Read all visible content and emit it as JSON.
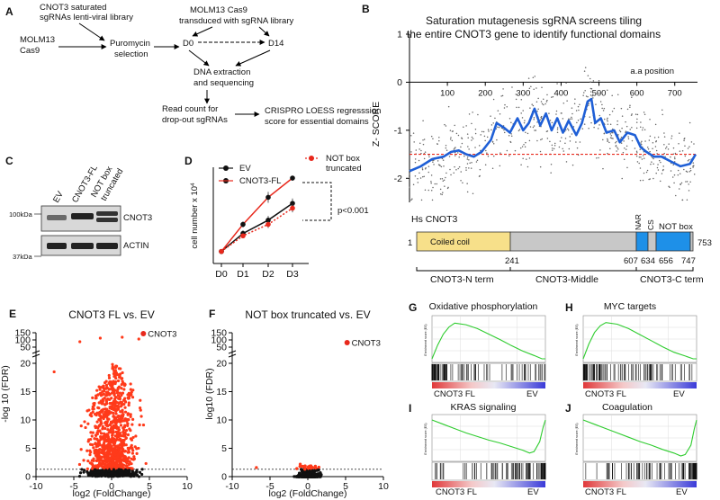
{
  "panel_labels": {
    "a": "A",
    "b": "B",
    "c": "C",
    "d": "D",
    "e": "E",
    "f": "F",
    "g": "G",
    "h": "H",
    "i": "I",
    "j": "J"
  },
  "panel_a": {
    "library_line1": "CNOT3 saturated",
    "library_line2": "sgRNAs lenti-viral library",
    "cell_line1": "MOLM13",
    "cell_line2": "Cas9",
    "transduced_line1": "MOLM13 Cas9",
    "transduced_line2": "transduced with  sgRNA library",
    "puro_line1": "Puromycin",
    "puro_line2": "selection",
    "d0": "D0",
    "d14": "D14",
    "dna_line1": "DNA extraction",
    "dna_line2": "and sequencing",
    "read_line1": "Read count for",
    "read_line2": "drop-out sgRNAs",
    "score_line1": "CRISPRO LOESS regresssion",
    "score_line2": "score for essential domains"
  },
  "panel_b": {
    "title_line1": "Saturation mutagenesis sgRNA screens tiling",
    "title_line2": "the entire CNOT3 gene to identify functional domains",
    "ylabel": "Z- SCORE",
    "xaxis_caption": "a.a position",
    "protein_name": "Hs CNOT3",
    "coiled_coil": "Coiled coil",
    "nar": "NAR",
    "cs": "CS",
    "not_box": "NOT box",
    "aa_start": "1",
    "aa_end": "753",
    "aa_241": "241",
    "aa_607": "607",
    "aa_634": "634",
    "aa_656": "656",
    "aa_747": "747",
    "region_n": "CNOT3-N term",
    "region_mid": "CNOT3-Middle",
    "region_c": "CNOT3-C term",
    "colors": {
      "loess": "#1f5fd6",
      "threshold": "#e8281c",
      "coiled": "#f7e08a",
      "middle": "#c8c8c8",
      "cterm": "#1e90e8"
    }
  },
  "panel_c": {
    "lane1": "EV",
    "lane2": "CNOT3-FL",
    "lane3_line1": "NOT box",
    "lane3_line2": "truncated",
    "band1": "CNOT3",
    "band2": "ACTIN",
    "mw1": "100kDa",
    "mw2": "37kDa"
  },
  "panel_d": {
    "legend_ev": "EV",
    "legend_fl": "CNOT3-FL",
    "legend_not_line1": "NOT box",
    "legend_not_line2": "truncated",
    "pvalue": "p<0.001",
    "ylabel": "cell number x 10",
    "ylabel_sup": "4"
  },
  "panel_e": {
    "title": "CNOT3 FL vs. EV",
    "ylabel": "-log 10 (FDR)",
    "xlabel": "log2 (FoldChange)",
    "gene_label": "CNOT3"
  },
  "panel_f": {
    "title": "NOT box truncated vs. EV",
    "ylabel": "log10 (FDR)",
    "xlabel": "log2 (FoldChange)",
    "gene_label": "CNOT3"
  },
  "panel_g": {
    "title": "Oxidative phosphorylation",
    "left_label": "CNOT3 FL",
    "right_label": "EV"
  },
  "panel_h": {
    "title": "MYC targets",
    "left_label": "CNOT3 FL",
    "right_label": "EV"
  },
  "panel_i": {
    "title": "KRAS signaling",
    "left_label": "CNOT3 FL",
    "right_label": "EV"
  },
  "panel_j": {
    "title": "Coagulation",
    "left_label": "CNOT3 FL",
    "right_label": "EV"
  },
  "gsea_ylabel": "Enrichment score (ES)",
  "chart_data": [
    {
      "id": "B",
      "type": "scatter",
      "title": "Saturation mutagenesis sgRNA screens tiling the entire CNOT3 gene to identify functional domains",
      "xlabel": "a.a position",
      "ylabel": "Z- SCORE",
      "xlim": [
        0,
        760
      ],
      "ylim": [
        -2.5,
        1
      ],
      "x_ticks": [
        100,
        200,
        300,
        400,
        500,
        600,
        700
      ],
      "y_ticks": [
        1,
        0,
        -1,
        -2
      ],
      "threshold": -1.5,
      "loess_x": [
        0,
        30,
        60,
        90,
        110,
        130,
        150,
        170,
        190,
        215,
        230,
        250,
        265,
        285,
        300,
        315,
        330,
        345,
        360,
        375,
        390,
        405,
        420,
        440,
        455,
        470,
        480,
        490,
        505,
        520,
        540,
        555,
        575,
        595,
        610,
        625,
        645,
        665,
        690,
        715,
        740,
        755
      ],
      "loess_y": [
        -1.85,
        -1.75,
        -1.6,
        -1.55,
        -1.45,
        -1.42,
        -1.5,
        -1.55,
        -1.45,
        -1.2,
        -0.85,
        -0.95,
        -1.05,
        -0.75,
        -1.0,
        -0.85,
        -0.55,
        -0.9,
        -0.65,
        -1.0,
        -0.75,
        -1.05,
        -0.8,
        -1.1,
        -0.85,
        -0.4,
        -0.35,
        -0.85,
        -0.75,
        -1.05,
        -1.0,
        -1.25,
        -1.05,
        -1.1,
        -1.35,
        -1.45,
        -1.55,
        -1.55,
        -1.65,
        -1.75,
        -1.7,
        -1.5
      ]
    },
    {
      "id": "D",
      "type": "line",
      "xlabel": "",
      "ylabel": "cell number x 10^4",
      "categories": [
        "D0",
        "D1",
        "D2",
        "D3"
      ],
      "ylim": [
        0,
        160
      ],
      "series": [
        {
          "name": "EV",
          "values": [
            20,
            50,
            72,
            100
          ]
        },
        {
          "name": "CNOT3-FL",
          "values": [
            20,
            65,
            110,
            142
          ]
        },
        {
          "name": "NOT box truncated",
          "values": [
            20,
            46,
            65,
            92
          ]
        }
      ],
      "annotation": "p<0.001"
    },
    {
      "id": "E",
      "type": "scatter",
      "title": "CNOT3 FL vs. EV",
      "xlabel": "log2 (FoldChange)",
      "ylabel": "-log 10 (FDR)",
      "xlim": [
        -10,
        10
      ],
      "y_ticks": [
        0,
        5,
        10,
        15,
        20,
        50,
        100,
        150
      ],
      "x_ticks": [
        -10,
        -5,
        0,
        5,
        10
      ],
      "highlight": {
        "label": "CNOT3",
        "x": 4.2,
        "y": 150
      }
    },
    {
      "id": "F",
      "type": "scatter",
      "title": "NOT box truncated vs. EV",
      "xlabel": "log2 (FoldChange)",
      "ylabel": "log10 (FDR)",
      "xlim": [
        -10,
        10
      ],
      "y_ticks": [
        0,
        5,
        10,
        15,
        20,
        50,
        100,
        150
      ],
      "x_ticks": [
        -10,
        -5,
        0,
        5,
        10
      ],
      "highlight": {
        "label": "CNOT3",
        "x": 5.2,
        "y": 70
      }
    },
    {
      "id": "G",
      "type": "line",
      "title": "Oxidative phosphorylation",
      "x": [
        0,
        0.05,
        0.1,
        0.15,
        0.2,
        0.3,
        0.4,
        0.5,
        0.6,
        0.7,
        0.8,
        0.9,
        0.97,
        1.0
      ],
      "values": [
        0,
        0.25,
        0.45,
        0.58,
        0.65,
        0.62,
        0.55,
        0.45,
        0.35,
        0.24,
        0.14,
        0.06,
        0.0,
        0.0
      ]
    },
    {
      "id": "H",
      "type": "line",
      "title": "MYC targets",
      "x": [
        0,
        0.05,
        0.1,
        0.15,
        0.2,
        0.3,
        0.4,
        0.5,
        0.6,
        0.7,
        0.8,
        0.9,
        0.97,
        1.0
      ],
      "values": [
        0,
        0.27,
        0.48,
        0.6,
        0.66,
        0.63,
        0.55,
        0.44,
        0.33,
        0.22,
        0.12,
        0.05,
        0.0,
        0.0
      ]
    },
    {
      "id": "I",
      "type": "line",
      "title": "KRAS signaling",
      "x": [
        0,
        0.1,
        0.2,
        0.3,
        0.4,
        0.5,
        0.6,
        0.7,
        0.8,
        0.86,
        0.9,
        0.95,
        0.98,
        1.0
      ],
      "values": [
        0,
        -0.06,
        -0.12,
        -0.18,
        -0.23,
        -0.28,
        -0.32,
        -0.37,
        -0.42,
        -0.46,
        -0.44,
        -0.3,
        -0.1,
        0.0
      ]
    },
    {
      "id": "J",
      "type": "line",
      "title": "Coagulation",
      "x": [
        0,
        0.1,
        0.2,
        0.3,
        0.4,
        0.5,
        0.6,
        0.7,
        0.8,
        0.86,
        0.9,
        0.95,
        0.98,
        1.0
      ],
      "values": [
        0,
        -0.06,
        -0.12,
        -0.18,
        -0.24,
        -0.3,
        -0.35,
        -0.41,
        -0.46,
        -0.5,
        -0.48,
        -0.35,
        -0.12,
        0.0
      ]
    }
  ]
}
